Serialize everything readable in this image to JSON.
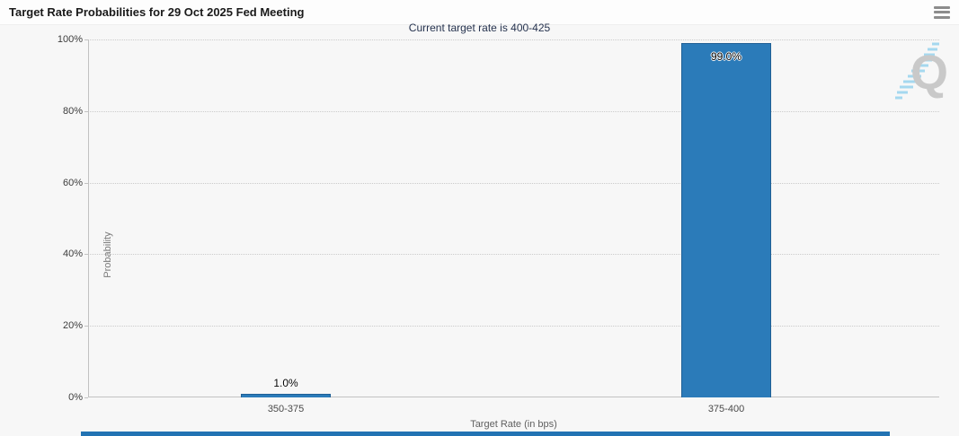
{
  "header": {
    "title": "Target Rate Probabilities for 29 Oct 2025 Fed Meeting",
    "menu_icon": "hamburger-icon"
  },
  "subtitle": "Current target rate is 400-425",
  "chart_data": {
    "type": "bar",
    "title": "Target Rate Probabilities for 29 Oct 2025 Fed Meeting",
    "subtitle": "Current target rate is 400-425",
    "categories": [
      "350-375",
      "375-400"
    ],
    "values": [
      1.0,
      99.0
    ],
    "value_labels": [
      "1.0%",
      "99.0%"
    ],
    "xlabel": "Target Rate (in bps)",
    "ylabel": "Probability",
    "ylim": [
      0,
      100
    ],
    "yticks": [
      "0%",
      "20%",
      "40%",
      "60%",
      "80%",
      "100%"
    ],
    "grid": "horizontal dotted",
    "legend": "none",
    "bar_color": "#2b7bb9"
  },
  "watermark": {
    "letter": "Q"
  },
  "colors": {
    "background": "#f7f7f7",
    "header_background": "#fdfdfd",
    "subtitle_color": "#26334f",
    "bar_fill": "#2b7bb9",
    "bar_border": "#1f5f95",
    "gridline": "#cbcbcb",
    "bottom_bar": "#2273b3",
    "watermark_gray": "#c9c9c9",
    "watermark_blue": "#a5d8ef"
  }
}
